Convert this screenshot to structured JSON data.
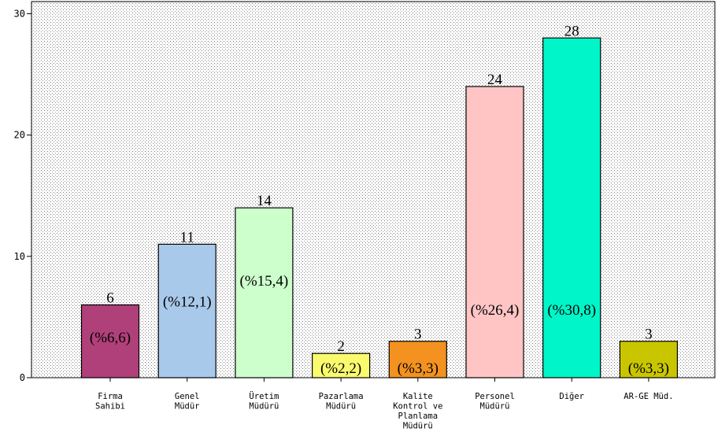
{
  "chart_data": {
    "type": "bar",
    "categories": [
      [
        "Firma",
        "Sahibi"
      ],
      [
        "Genel",
        "Müdür"
      ],
      [
        "Üretim",
        "Müdürü"
      ],
      [
        "Pazarlama",
        "Müdürü"
      ],
      [
        "Kalite",
        "Kontrol ve",
        "Planlama",
        "Müdürü"
      ],
      [
        "Personel",
        "Müdürü"
      ],
      [
        "Diğer"
      ],
      [
        "AR-GE Müd."
      ]
    ],
    "values": [
      6,
      11,
      14,
      2,
      3,
      24,
      28,
      3
    ],
    "value_labels": [
      "6",
      "11",
      "14",
      "2",
      "3",
      "24",
      "28",
      "3"
    ],
    "percent_labels": [
      "(%6,6)",
      "(%12,1)",
      "(%15,4)",
      "(%2,2)",
      "(%3,3)",
      "(%26,4)",
      "(%30,8)",
      "(%3,3)"
    ],
    "colors": [
      "#b0407a",
      "#a9c9ea",
      "#ccffcc",
      "#fafa6e",
      "#f39220",
      "#ffc5c5",
      "#00f5c8",
      "#c9c600"
    ],
    "ylim": [
      0,
      31
    ],
    "yticks": [
      0,
      10,
      20,
      30
    ],
    "ytick_labels": [
      "0",
      "10",
      "20",
      "30"
    ],
    "background": "dotted-gray",
    "grid": false,
    "title": "",
    "xlabel": "",
    "ylabel": ""
  }
}
